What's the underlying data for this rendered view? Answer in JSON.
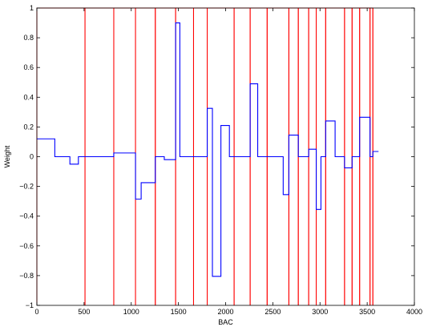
{
  "chart_data": {
    "type": "line",
    "title": "",
    "xlabel": "BAC",
    "ylabel": "Weight",
    "xlim": [
      0,
      4000
    ],
    "ylim": [
      -1,
      1
    ],
    "xticks": [
      0,
      500,
      1000,
      1500,
      2000,
      2500,
      3000,
      3500,
      4000
    ],
    "yticks": [
      -1,
      -0.8,
      -0.6,
      -0.4,
      -0.2,
      0,
      0.2,
      0.4,
      0.6,
      0.8,
      1
    ],
    "xtick_labels": [
      "0",
      "500",
      "1000",
      "1500",
      "2000",
      "2500",
      "3000",
      "3500",
      "4000"
    ],
    "ytick_labels": [
      "−1",
      "−0.8",
      "−0.6",
      "−0.4",
      "−0.2",
      "0",
      "0.2",
      "0.4",
      "0.6",
      "0.8",
      "1"
    ],
    "grid": false,
    "legend": "none",
    "series": [
      {
        "kind": "step",
        "color": "#0000ff",
        "steps": [
          [
            0,
            190,
            0.12
          ],
          [
            190,
            350,
            0.0
          ],
          [
            350,
            440,
            -0.05
          ],
          [
            440,
            815,
            0.0
          ],
          [
            815,
            1045,
            0.025
          ],
          [
            1045,
            1105,
            -0.285
          ],
          [
            1105,
            1255,
            -0.175
          ],
          [
            1255,
            1350,
            0.0
          ],
          [
            1350,
            1470,
            -0.02
          ],
          [
            1470,
            1515,
            0.9
          ],
          [
            1515,
            1805,
            0.0
          ],
          [
            1805,
            1860,
            0.325
          ],
          [
            1860,
            1950,
            -0.805
          ],
          [
            1950,
            2040,
            0.21
          ],
          [
            2040,
            2260,
            0.0
          ],
          [
            2260,
            2340,
            0.49
          ],
          [
            2340,
            2610,
            0.0
          ],
          [
            2610,
            2670,
            -0.255
          ],
          [
            2670,
            2770,
            0.145
          ],
          [
            2770,
            2880,
            0.0
          ],
          [
            2880,
            2960,
            0.05
          ],
          [
            2960,
            3010,
            -0.355
          ],
          [
            3010,
            3060,
            0.0
          ],
          [
            3060,
            3160,
            0.24
          ],
          [
            3160,
            3260,
            0.0
          ],
          [
            3260,
            3340,
            -0.075
          ],
          [
            3340,
            3420,
            0.0
          ],
          [
            3420,
            3530,
            0.265
          ],
          [
            3530,
            3560,
            0.0
          ],
          [
            3560,
            3620,
            0.035
          ]
        ]
      },
      {
        "kind": "segment-boundaries",
        "color": "#ff0000",
        "boundaries": [
          0,
          510,
          815,
          1045,
          1255,
          1470,
          1660,
          1805,
          2090,
          2260,
          2440,
          2670,
          2770,
          2880,
          2960,
          3060,
          3260,
          3340,
          3420,
          3530,
          3560
        ]
      }
    ]
  }
}
